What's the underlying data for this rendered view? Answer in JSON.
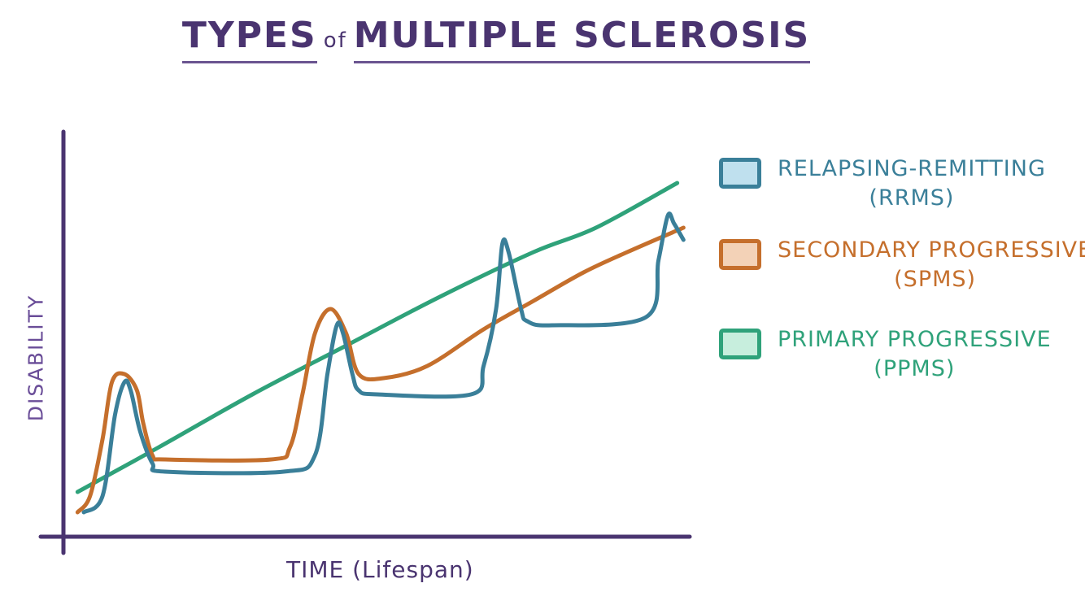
{
  "title_parts": [
    "TYPES",
    "of",
    "MULTIPLE SCLEROSIS"
  ],
  "axes": {
    "xlabel": "TIME (Lifespan)",
    "ylabel": "DISABILITY"
  },
  "legend": [
    {
      "line1": "RELAPSING-REMITTING",
      "line2": "(RRMS)",
      "color": "#3a7f99",
      "fill": "#bfe0ee"
    },
    {
      "line1": "SECONDARY PROGRESSIVE",
      "line2": "(SPMS)",
      "color": "#c56f2c",
      "fill": "#f3d2b7"
    },
    {
      "line1": "PRIMARY PROGRESSIVE",
      "line2": "(PPMS)",
      "color": "#2fa27a",
      "fill": "#c7eedd"
    }
  ],
  "colors": {
    "axis": "#4a3470",
    "ylabel": "#6a4d98"
  },
  "chart_data": {
    "type": "line",
    "title": "TYPES of MULTIPLE SCLEROSIS",
    "xlabel": "TIME (Lifespan)",
    "ylabel": "DISABILITY",
    "xlim": [
      0,
      100
    ],
    "ylim": [
      0,
      100
    ],
    "grid": false,
    "legend_position": "right",
    "series": [
      {
        "name": "RELAPSING-REMITTING (RRMS)",
        "color": "#3a7f99",
        "x": [
          3,
          6,
          8,
          9.5,
          10.5,
          12,
          14,
          16,
          35,
          40,
          42,
          43.5,
          44.5,
          46,
          47,
          50,
          65,
          67,
          69,
          70,
          71,
          73,
          74,
          78,
          93,
          95,
          96.5,
          97.5,
          99
        ],
        "y": [
          6,
          10,
          30,
          38,
          36,
          26,
          18,
          16,
          16,
          20,
          40,
          52,
          50,
          40,
          36,
          35,
          35,
          42,
          56,
          72,
          70,
          56,
          53,
          52,
          54,
          68,
          79,
          77,
          73
        ]
      },
      {
        "name": "SECONDARY PROGRESSIVE (SPMS)",
        "color": "#c56f2c",
        "x": [
          2,
          4,
          6,
          7.5,
          9.5,
          11.5,
          12.5,
          14,
          16,
          33,
          36,
          38,
          40,
          42.5,
          45,
          47,
          51,
          58,
          67,
          75,
          83,
          90,
          99
        ],
        "y": [
          6,
          10,
          24,
          38,
          40,
          36,
          28,
          20,
          19,
          19,
          22,
          35,
          50,
          56,
          50,
          40,
          39,
          42,
          51,
          58,
          65,
          70,
          76
        ]
      },
      {
        "name": "PRIMARY PROGRESSIVE (PPMS)",
        "color": "#2fa27a",
        "x": [
          2,
          15,
          30,
          45,
          60,
          75,
          85,
          98
        ],
        "y": [
          11,
          22,
          35,
          47,
          59,
          70,
          76,
          87
        ]
      }
    ]
  }
}
